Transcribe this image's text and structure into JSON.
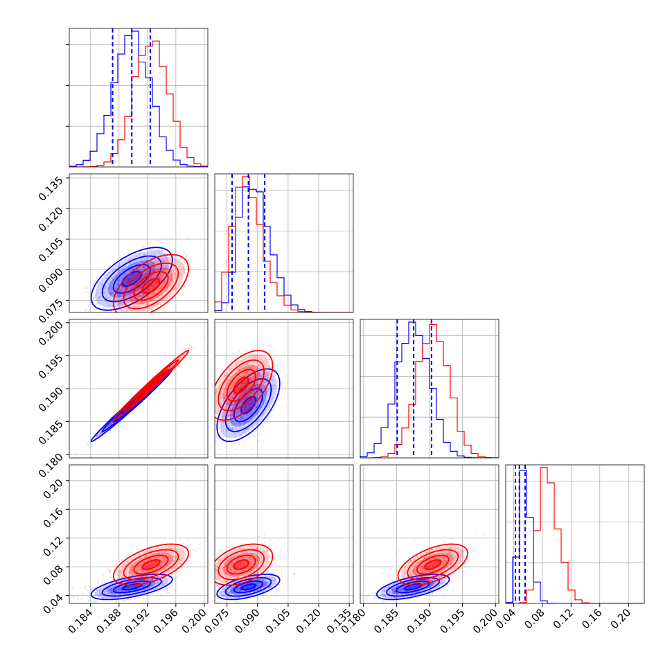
{
  "chart_data": {
    "type": "corner",
    "grid": true,
    "colors": {
      "series_a": "#0000ff",
      "series_b": "#ff0000",
      "grid": "#b0b0b0"
    },
    "parameters": [
      {
        "range": [
          0.181,
          0.2005
        ],
        "ticks": [
          "0.184",
          "0.188",
          "0.192",
          "0.196",
          "0.200"
        ]
      },
      {
        "range": [
          0.069,
          0.137
        ],
        "ticks": [
          "0.075",
          "0.090",
          "0.105",
          "0.120",
          "0.135"
        ]
      },
      {
        "range": [
          0.1795,
          0.2005
        ],
        "ticks": [
          "0.180",
          "0.185",
          "0.190",
          "0.195",
          "0.200"
        ]
      },
      {
        "range": [
          0.029,
          0.222
        ],
        "ticks": [
          "0.04",
          "0.08",
          "0.12",
          "0.16",
          "0.20"
        ]
      }
    ],
    "series": [
      {
        "color": "#0000ff",
        "means": [
          0.1898,
          0.0855,
          0.1875,
          0.052
        ],
        "sigmas": [
          0.0026,
          0.007,
          0.0025,
          0.008
        ],
        "correlations": {
          "0-1": 0.6,
          "0-2": 0.99,
          "0-3": 0.6,
          "1-2": 0.6,
          "1-3": 0.55,
          "2-3": 0.6
        },
        "quantile_lines": {
          "0": [
            0.1871,
            0.1898,
            0.1924
          ],
          "1": [
            0.0775,
            0.0855,
            0.0935
          ],
          "2": [
            0.1851,
            0.1876,
            0.1903
          ],
          "3": [
            0.0425,
            0.048,
            0.056
          ]
        }
      },
      {
        "color": "#ff0000",
        "means": [
          0.1925,
          0.082,
          0.1905,
          0.083
        ],
        "sigmas": [
          0.0024,
          0.007,
          0.0024,
          0.013
        ],
        "correlations": {
          "0-1": 0.55,
          "0-2": 0.99,
          "0-3": 0.55,
          "1-2": 0.55,
          "1-3": 0.4,
          "2-3": 0.55
        }
      }
    ]
  }
}
